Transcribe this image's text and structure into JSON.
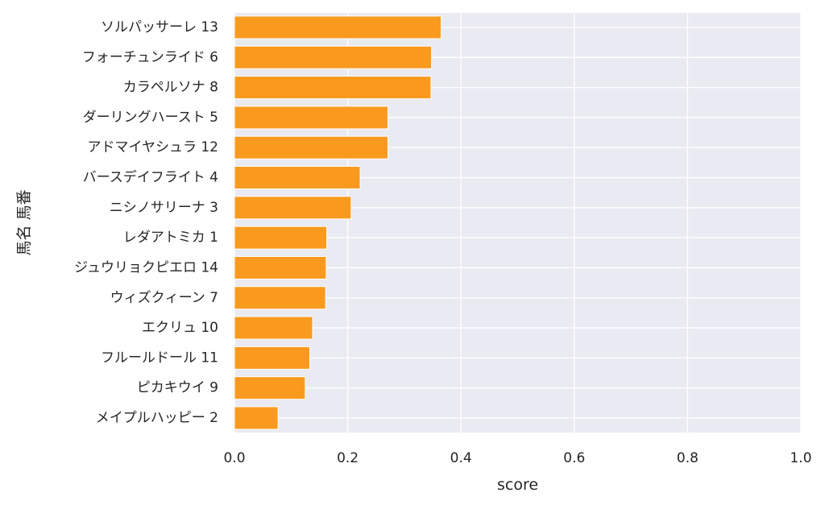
{
  "chart_data": {
    "type": "bar",
    "orientation": "horizontal",
    "xlabel": "score",
    "ylabel": "馬名 馬番",
    "xlim": [
      0.0,
      1.0
    ],
    "xticks": [
      "0.0",
      "0.2",
      "0.4",
      "0.6",
      "0.8",
      "1.0"
    ],
    "grid": true,
    "bar_color": "#f99a1f",
    "background_color": "#eaeaf2",
    "categories": [
      "ソルパッサーレ 13",
      "フォーチュンライド 6",
      "カラペルソナ 8",
      "ダーリングハースト 5",
      "アドマイヤシュラ 12",
      "バースデイフライト 4",
      "ニシノサリーナ 3",
      "レダアトミカ 1",
      "ジュウリョクピエロ 14",
      "ウィズクィーン 7",
      "エクリュ 10",
      "フルールドール 11",
      "ピカキウイ 9",
      "メイプルハッピー 2"
    ],
    "values": [
      0.365,
      0.348,
      0.347,
      0.271,
      0.271,
      0.222,
      0.206,
      0.163,
      0.162,
      0.161,
      0.138,
      0.133,
      0.125,
      0.077
    ]
  }
}
